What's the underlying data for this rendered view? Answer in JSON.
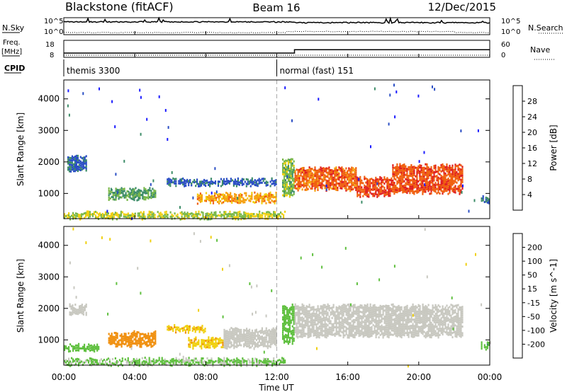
{
  "header": {
    "station": "Blackstone (fitACF)",
    "beam": "Beam 16",
    "date": "12/Dec/2015"
  },
  "summary_panels": {
    "nsky_label": "N.Sky",
    "nsearch_label": "N.Search",
    "freq_label_top": "Freq.",
    "freq_label_unit": "[MHz]",
    "nave_label": "Nave",
    "cpid_label": "CPID",
    "nsky_ticks_left": [
      "10^5",
      "10^0"
    ],
    "nsearch_ticks_right": [
      "10^5",
      "10^0"
    ],
    "freq_ticks_left": [
      "18",
      "8"
    ],
    "nave_ticks_right": [
      "60",
      "0"
    ],
    "cpid_segments": [
      {
        "start_ut": 0.0,
        "name": "themis 3300"
      },
      {
        "start_ut": 12.0,
        "name": "normal (fast) 151"
      }
    ],
    "freq_steps": [
      {
        "start_ut": 0.0,
        "end_ut": 13.0,
        "mhz": 10.5
      },
      {
        "start_ut": 13.0,
        "end_ut": 24.0,
        "mhz": 12.5
      }
    ]
  },
  "axes": {
    "xlabel": "Time UT",
    "ylabel": "Slant Range [km]",
    "x_ticks": [
      "00:00",
      "04:00",
      "08:00",
      "12:00",
      "16:00",
      "20:00",
      "00:00"
    ],
    "y_ticks": [
      "1000",
      "2000",
      "3000",
      "4000"
    ]
  },
  "colorbars": {
    "power": {
      "label": "Power [dB]",
      "ticks": [
        "4",
        "8",
        "12",
        "16",
        "20",
        "24",
        "28"
      ],
      "colors": [
        "#1a1aff",
        "#2a4ec4",
        "#3c8c68",
        "#7ab84a",
        "#f0d010",
        "#f5a010",
        "#f06010",
        "#e02020"
      ]
    },
    "velocity": {
      "label": "Velocity [m s^-1]",
      "ticks": [
        "200",
        "100",
        "50",
        "15",
        "-15",
        "-50",
        "-100",
        "-200"
      ],
      "colors": [
        "#1a1aff",
        "#2a4ec4",
        "#3c8c68",
        "#60c040",
        "#c8c8c0",
        "#f0d010",
        "#f09010",
        "#f06010",
        "#e02020"
      ]
    }
  },
  "chart_data": [
    {
      "type": "heatmap",
      "title": "Power [dB]",
      "xlabel": "Time UT",
      "ylabel": "Slant Range [km]",
      "xlim": [
        0,
        24
      ],
      "ylim": [
        200,
        4600
      ],
      "zlim": [
        0,
        32
      ],
      "blobs": [
        {
          "t0": 0.2,
          "t1": 1.3,
          "r0": 1700,
          "r1": 2200,
          "v": 7
        },
        {
          "t0": 2.5,
          "t1": 5.2,
          "r0": 800,
          "r1": 1150,
          "v": 12
        },
        {
          "t0": 5.8,
          "t1": 12.0,
          "r0": 1250,
          "r1": 1450,
          "v": 7
        },
        {
          "t0": 7.5,
          "t1": 12.0,
          "r0": 700,
          "r1": 1000,
          "v": 22
        },
        {
          "t0": 12.3,
          "t1": 13.0,
          "r0": 900,
          "r1": 2100,
          "v": 14
        },
        {
          "t0": 13.0,
          "t1": 16.5,
          "r0": 1100,
          "r1": 1800,
          "v": 26
        },
        {
          "t0": 16.5,
          "t1": 18.5,
          "r0": 900,
          "r1": 1500,
          "v": 28
        },
        {
          "t0": 18.5,
          "t1": 22.5,
          "r0": 1000,
          "r1": 1900,
          "v": 27
        },
        {
          "t0": 0.0,
          "t1": 12.5,
          "r0": 200,
          "r1": 400,
          "v": 16
        },
        {
          "t0": 23.5,
          "t1": 24.0,
          "r0": 700,
          "r1": 900,
          "v": 8
        }
      ]
    },
    {
      "type": "heatmap",
      "title": "Velocity [m s^-1]",
      "xlabel": "Time UT",
      "ylabel": "Slant Range [km]",
      "xlim": [
        0,
        24
      ],
      "ylim": [
        200,
        4600
      ],
      "zlim": [
        -200,
        200
      ],
      "blobs": [
        {
          "t0": 0.3,
          "t1": 1.3,
          "r0": 1800,
          "r1": 2100,
          "v": 0
        },
        {
          "t0": 0.0,
          "t1": 2.0,
          "r0": 650,
          "r1": 850,
          "v": 30
        },
        {
          "t0": 2.5,
          "t1": 5.2,
          "r0": 800,
          "r1": 1250,
          "v": -70
        },
        {
          "t0": 5.8,
          "t1": 8.0,
          "r0": 1250,
          "r1": 1450,
          "v": -40
        },
        {
          "t0": 7.0,
          "t1": 9.0,
          "r0": 750,
          "r1": 1050,
          "v": -40
        },
        {
          "t0": 9.0,
          "t1": 12.0,
          "r0": 750,
          "r1": 1350,
          "v": 0
        },
        {
          "t0": 12.3,
          "t1": 13.0,
          "r0": 900,
          "r1": 2100,
          "v": 30
        },
        {
          "t0": 13.0,
          "t1": 22.5,
          "r0": 1100,
          "r1": 2100,
          "v": 0
        },
        {
          "t0": 0.0,
          "t1": 12.5,
          "r0": 200,
          "r1": 400,
          "v": 20
        },
        {
          "t0": 23.5,
          "t1": 24.0,
          "r0": 700,
          "r1": 900,
          "v": 40
        }
      ]
    }
  ]
}
